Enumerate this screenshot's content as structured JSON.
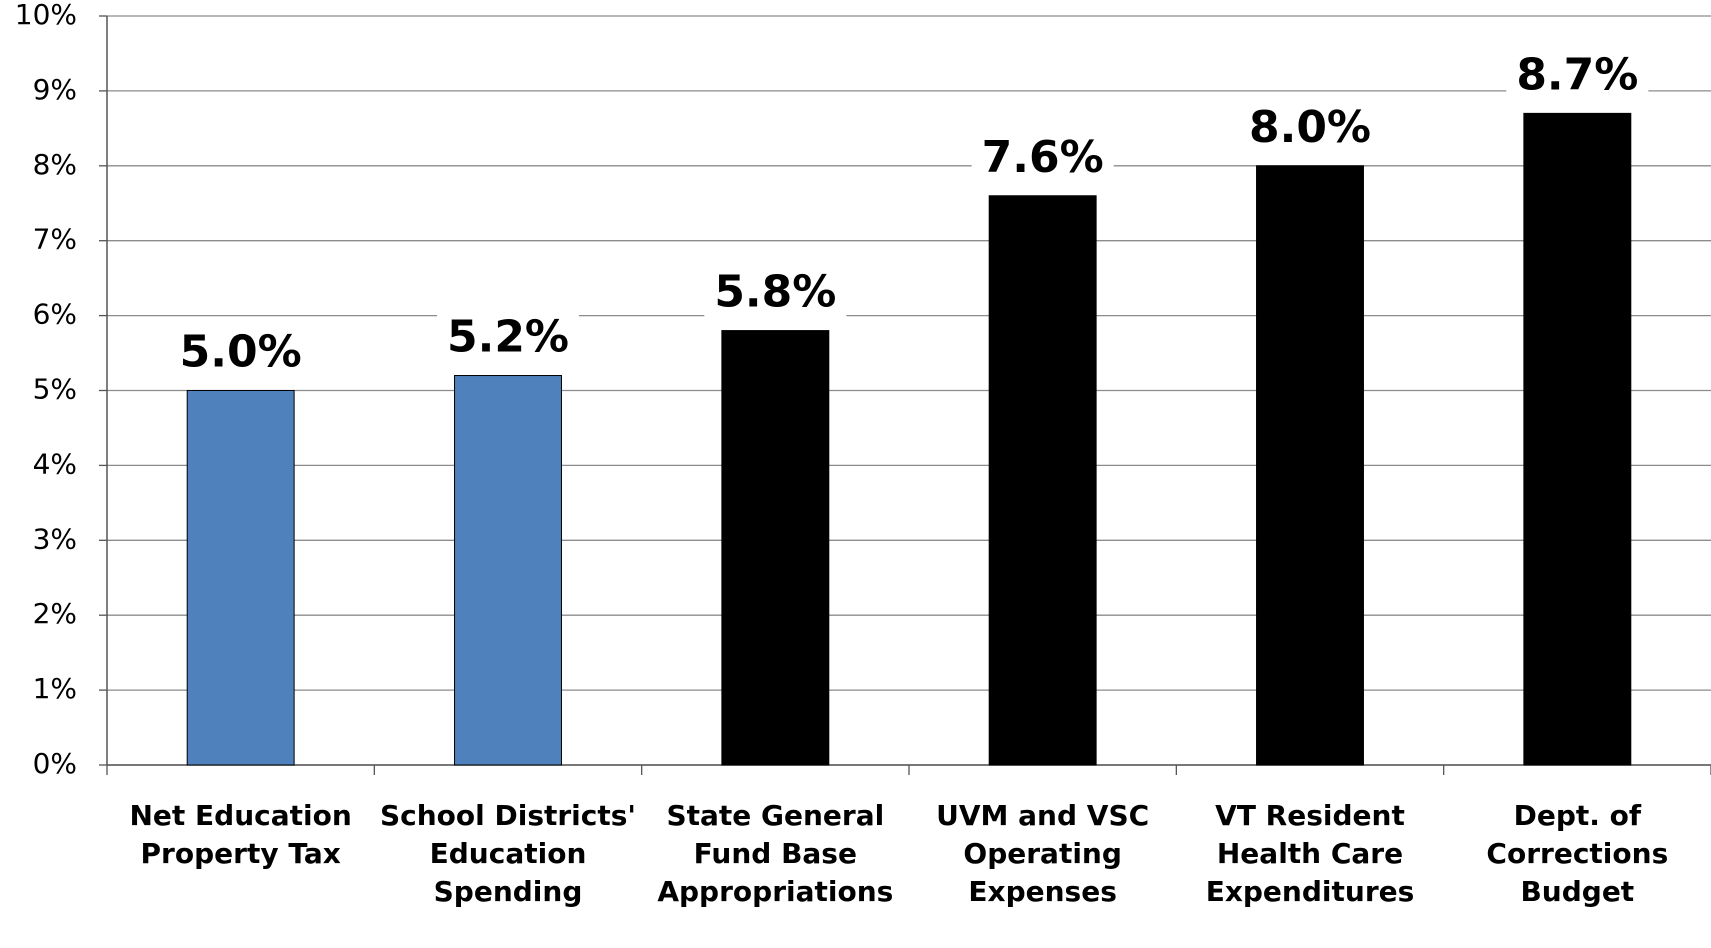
{
  "chart_data": {
    "type": "bar",
    "categories": [
      "Net Education Property Tax",
      "School Districts' Education Spending",
      "State General Fund Base Appropriations",
      "UVM and VSC Operating Expenses",
      "VT Resident Health Care Expenditures",
      "Dept. of Corrections Budget"
    ],
    "values": [
      5.0,
      5.2,
      5.8,
      7.6,
      8.0,
      8.7
    ],
    "value_labels": [
      "5.0%",
      "5.2%",
      "5.8%",
      "7.6%",
      "8.0%",
      "8.7%"
    ],
    "colors": [
      "#4f81bd",
      "#4f81bd",
      "#000000",
      "#000000",
      "#000000",
      "#000000"
    ],
    "ylim": [
      0,
      10
    ],
    "yticks": [
      {
        "value": 0,
        "label": "0%"
      },
      {
        "value": 1,
        "label": "1%"
      },
      {
        "value": 2,
        "label": "2%"
      },
      {
        "value": 3,
        "label": "3%"
      },
      {
        "value": 4,
        "label": "4%"
      },
      {
        "value": 5,
        "label": "5%"
      },
      {
        "value": 6,
        "label": "6%"
      },
      {
        "value": 7,
        "label": "7%"
      },
      {
        "value": 8,
        "label": "8%"
      },
      {
        "value": 9,
        "label": "9%"
      },
      {
        "value": 10,
        "label": "10%"
      }
    ],
    "grid": true
  }
}
